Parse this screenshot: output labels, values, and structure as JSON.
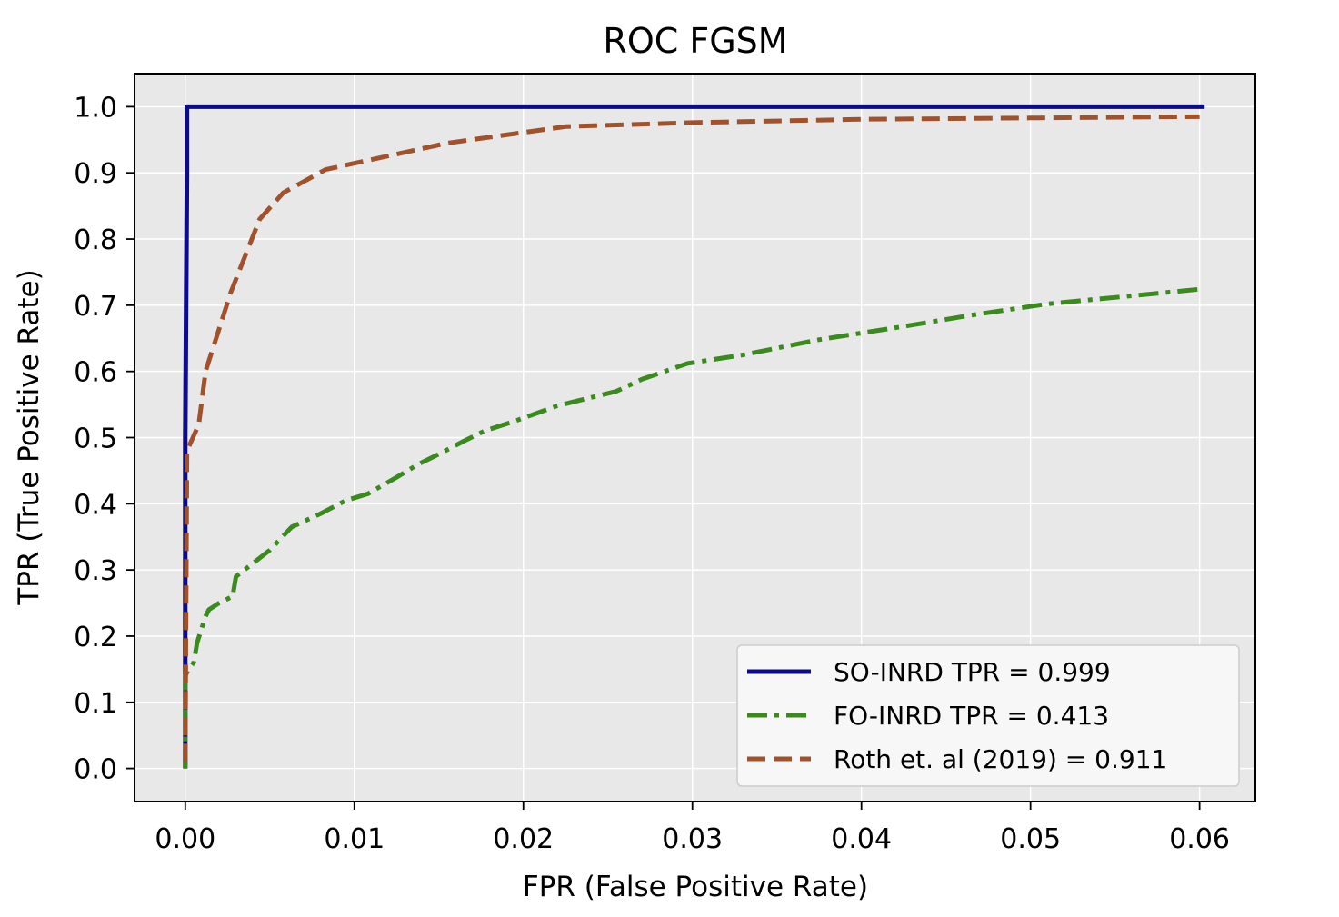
{
  "chart_data": {
    "type": "line",
    "title": "ROC FGSM",
    "xlabel": "FPR (False Positive Rate)",
    "ylabel": "TPR (True Positive Rate)",
    "xlim": [
      -0.003,
      0.0633
    ],
    "ylim": [
      -0.05,
      1.05
    ],
    "xticks": [
      0.0,
      0.01,
      0.02,
      0.03,
      0.04,
      0.05,
      0.06
    ],
    "xtick_labels": [
      "0.00",
      "0.01",
      "0.02",
      "0.03",
      "0.04",
      "0.05",
      "0.06"
    ],
    "yticks": [
      0.0,
      0.1,
      0.2,
      0.3,
      0.4,
      0.5,
      0.6,
      0.7,
      0.8,
      0.9,
      1.0
    ],
    "ytick_labels": [
      "0.0",
      "0.1",
      "0.2",
      "0.3",
      "0.4",
      "0.5",
      "0.6",
      "0.7",
      "0.8",
      "0.9",
      "1.0"
    ],
    "grid": true,
    "background": "#e8e8e8",
    "legend_position": "lower-right",
    "series": [
      {
        "name": "SO-INRD TPR = 0.999",
        "color": "#0b0b8c",
        "style": "solid",
        "x": [
          0.0,
          0.0,
          0.0,
          0.0001,
          0.0001,
          0.0603
        ],
        "y": [
          0.0,
          0.1,
          0.5,
          0.9,
          1.0,
          1.0
        ]
      },
      {
        "name": "FO-INRD TPR = 0.413",
        "color": "#3a8a1e",
        "style": "dashdot",
        "x": [
          0.0,
          0.0,
          0.0002,
          0.0005,
          0.0007,
          0.0012,
          0.0014,
          0.002,
          0.0028,
          0.003,
          0.004,
          0.005,
          0.0063,
          0.008,
          0.0095,
          0.0108,
          0.0125,
          0.0138,
          0.015,
          0.0165,
          0.0177,
          0.0195,
          0.022,
          0.0255,
          0.027,
          0.0297,
          0.033,
          0.0375,
          0.0425,
          0.0465,
          0.051,
          0.0555,
          0.0603
        ],
        "y": [
          0.0,
          0.14,
          0.15,
          0.16,
          0.19,
          0.23,
          0.24,
          0.25,
          0.26,
          0.29,
          0.31,
          0.33,
          0.365,
          0.385,
          0.405,
          0.415,
          0.44,
          0.46,
          0.475,
          0.495,
          0.51,
          0.525,
          0.548,
          0.57,
          0.588,
          0.612,
          0.625,
          0.648,
          0.668,
          0.685,
          0.702,
          0.713,
          0.725
        ]
      },
      {
        "name": "Roth et. al (2019) = 0.911",
        "color": "#a0522d",
        "style": "dashed",
        "x": [
          0.0,
          0.0001,
          0.0008,
          0.0012,
          0.0027,
          0.0044,
          0.0058,
          0.0083,
          0.011,
          0.0155,
          0.0225,
          0.03,
          0.04,
          0.05,
          0.06
        ],
        "y": [
          0.01,
          0.48,
          0.52,
          0.6,
          0.72,
          0.83,
          0.87,
          0.905,
          0.92,
          0.945,
          0.97,
          0.976,
          0.981,
          0.983,
          0.985
        ]
      }
    ]
  }
}
